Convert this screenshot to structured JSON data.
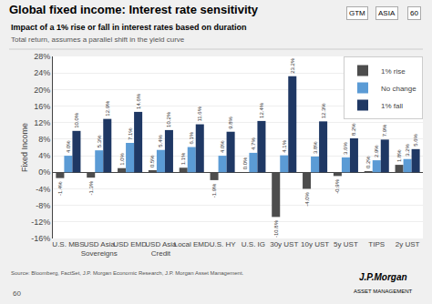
{
  "chart_data": {
    "type": "bar",
    "title": "Global fixed income: Interest rate sensitivity",
    "subtitle": "Impact of a 1% rise or fall in interest rates based on duration",
    "ylabel": "Fixed Income",
    "annotations": [
      "Total return, assumes a parallel shift in the yield curve",
      "GTM",
      "ASIA",
      "60",
      "Source: Bloomberg, FactSet, J.P. Morgan Economic Research, J.P. Morgan Asset Management.",
      "60",
      "J.P.Morgan",
      "ASSET MANAGEMENT"
    ],
    "categories": [
      "U.S. MBS",
      "USD Asia\nSovereigns",
      "USD EMD",
      "USD Asia\nCredit",
      "Local EMD",
      "U.S. HY",
      "U.S. IG",
      "30y UST",
      "10y UST",
      "5y UST",
      "TIPS",
      "2y UST"
    ],
    "series": [
      {
        "name": "1% rise",
        "color": "#4d4d4d",
        "values": [
          -1.4,
          -1.3,
          1.0,
          0.5,
          1.1,
          -1.9,
          0.0,
          -10.8,
          -4.0,
          -0.9,
          0.2,
          1.8
        ],
        "value_labels": [
          "-1.4%",
          "-1.3%",
          "1.0%",
          "0.5%",
          "1.1%",
          "-1.9%",
          "0.0%",
          "-10.8%",
          "-4.0%",
          "-0.9%",
          "0.2%",
          "1.8%"
        ]
      },
      {
        "name": "No change",
        "color": "#5b9bd5",
        "values": [
          4.0,
          5.3,
          7.1,
          5.4,
          6.1,
          4.0,
          4.7,
          4.1,
          3.8,
          3.6,
          2.9,
          3.2
        ],
        "value_labels": [
          "4.0%",
          "5.3%",
          "7.1%",
          "5.4%",
          "6.1%",
          "4.0%",
          "4.7%",
          "4.1%",
          "3.8%",
          "3.6%",
          "2.9%",
          "3.2%"
        ]
      },
      {
        "name": "1% fall",
        "color": "#1f3864",
        "values": [
          10.0,
          12.9,
          14.6,
          10.2,
          11.6,
          9.8,
          12.4,
          23.2,
          12.3,
          8.2,
          7.9,
          5.6
        ],
        "value_labels": [
          "10.0%",
          "12.9%",
          "14.6%",
          "10.2%",
          "11.6%",
          "9.8%",
          "12.4%",
          "23.2%",
          "12.3%",
          "8.2%",
          "7.9%",
          "5.6%"
        ]
      }
    ],
    "ylim": [
      -16,
      28
    ],
    "yticks": [
      {
        "value": -16,
        "label": "-16%"
      },
      {
        "value": -12,
        "label": "-12%"
      },
      {
        "value": -8,
        "label": "-8%"
      },
      {
        "value": -4,
        "label": "-4%"
      },
      {
        "value": 0,
        "label": "0%"
      },
      {
        "value": 4,
        "label": "4%"
      },
      {
        "value": 8,
        "label": "8%"
      },
      {
        "value": 12,
        "label": "12%"
      },
      {
        "value": 16,
        "label": "16%"
      },
      {
        "value": 20,
        "label": "20%"
      },
      {
        "value": 24,
        "label": "24%"
      },
      {
        "value": 28,
        "label": "28%"
      }
    ],
    "grid": true,
    "legend": "upper right",
    "data_labels": true
  }
}
